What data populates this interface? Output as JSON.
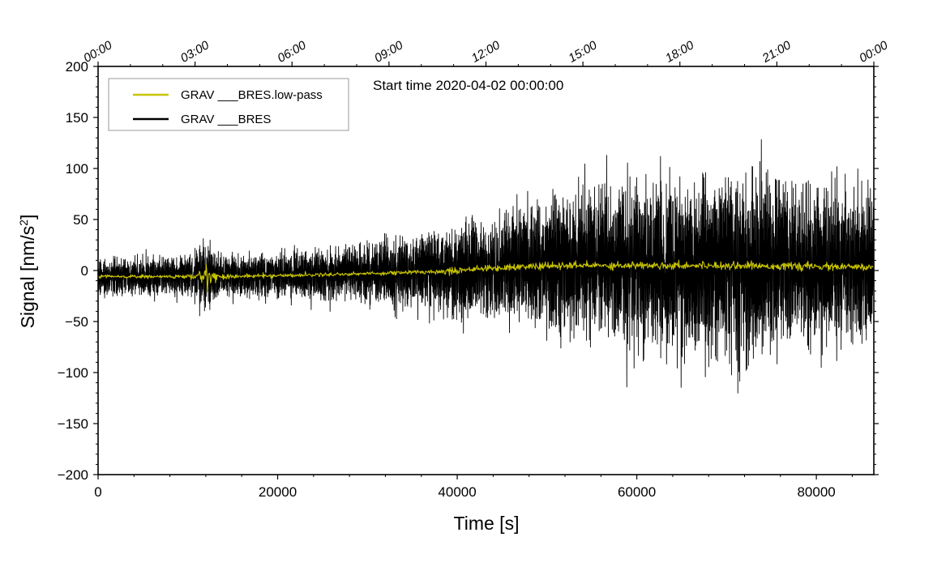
{
  "chart_data": {
    "type": "line",
    "title": "",
    "annotation": "Start time 2020-04-02 00:00:00",
    "xlabel": "Time [s]",
    "ylabel_main": "Signal [nm/s",
    "ylabel_sup": "2",
    "ylabel_end": "]",
    "xlim": [
      0,
      86400
    ],
    "ylim": [
      -200,
      200
    ],
    "x_ticks": [
      0,
      20000,
      40000,
      60000,
      80000
    ],
    "x_tick_labels": [
      "0",
      "20000",
      "40000",
      "60000",
      "80000"
    ],
    "y_ticks": [
      200,
      150,
      100,
      50,
      0,
      -50,
      -100,
      -150,
      -200
    ],
    "y_tick_labels": [
      "200",
      "150",
      "100",
      "50",
      "0",
      "−50",
      "−100",
      "−150",
      "−200"
    ],
    "top_axis_ticks_s": [
      0,
      10800,
      21600,
      32400,
      43200,
      54000,
      64800,
      75600,
      86400
    ],
    "top_axis_labels": [
      "00:00",
      "03:00",
      "06:00",
      "09:00",
      "12:00",
      "15:00",
      "18:00",
      "21:00",
      "00:00"
    ],
    "legend_position": "top-left",
    "series": [
      {
        "name": "GRAV ___BRES.low-pass",
        "color": "#c8c400",
        "envelope_s": [
          0,
          9000,
          11000,
          12200,
          13500,
          20000,
          30000,
          38000,
          39600,
          41000,
          48000,
          55000,
          70000,
          86400
        ],
        "center_values": [
          -6,
          -6,
          -6,
          -5,
          -6,
          -5,
          -3,
          -1,
          0,
          1,
          4,
          5,
          5,
          3
        ],
        "amplitude_values": [
          1.5,
          1.5,
          3,
          9,
          2,
          1.5,
          1.5,
          2,
          4,
          2,
          3,
          3,
          3,
          3
        ]
      },
      {
        "name": "GRAV ___BRES",
        "color": "#000000",
        "envelope_s": [
          0,
          10000,
          12200,
          14000,
          20000,
          25000,
          30000,
          35000,
          40000,
          45000,
          50000,
          55000,
          60000,
          65000,
          70000,
          75000,
          80000,
          86400
        ],
        "center_values": [
          -6,
          -6,
          -6,
          -6,
          -5,
          -4,
          -3,
          -2,
          0,
          2,
          4,
          5,
          5,
          5,
          5,
          5,
          4,
          3
        ],
        "amplitude_values": [
          13,
          14,
          25,
          14,
          16,
          19,
          22,
          26,
          32,
          40,
          48,
          55,
          60,
          65,
          66,
          65,
          60,
          55
        ]
      }
    ]
  }
}
